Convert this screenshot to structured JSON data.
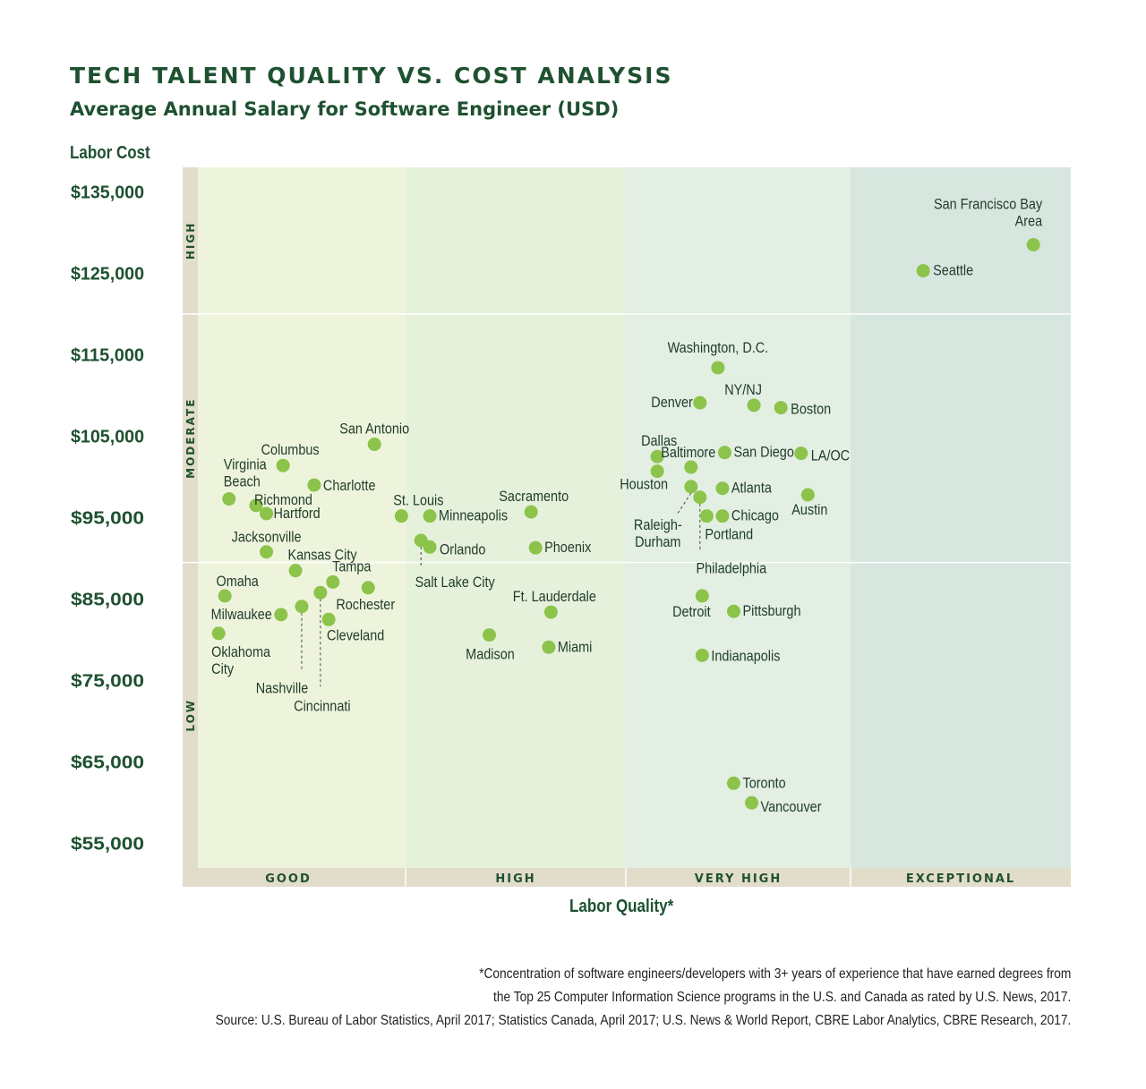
{
  "header": {
    "title": "TECH TALENT QUALITY VS. COST ANALYSIS",
    "subtitle": "Average Annual Salary for Software Engineer (USD)"
  },
  "footnote": {
    "line1": "*Concentration of software engineers/developers with 3+ years of experience that have earned degrees from",
    "line2": "the Top 25 Computer Information Science programs in the U.S. and Canada as rated by U.S. News, 2017.",
    "line3": "Source: U.S. Bureau of Labor Statistics, April 2017; Statistics Canada, April 2017; U.S. News & World Report, CBRE Labor Analytics, CBRE Research, 2017."
  },
  "colors": {
    "title": "#1e5130",
    "point": "#8cc34a",
    "band_good": "#eef4dc",
    "band_high": "#e6f1dc",
    "band_very_high": "#e2efe2",
    "band_exceptional": "#d8e6e0",
    "strip": "#e2dccb"
  },
  "chart_data": {
    "type": "scatter",
    "title": "TECH TALENT QUALITY VS. COST ANALYSIS",
    "subtitle": "Average Annual Salary for Software Engineer (USD)",
    "ylabel": "Labor Cost",
    "xlabel": "Labor Quality*",
    "ylim": [
      52000,
      138000
    ],
    "yticks": [
      "$135,000",
      "$125,000",
      "$115,000",
      "$105,000",
      "$95,000",
      "$85,000",
      "$75,000",
      "$65,000",
      "$55,000"
    ],
    "ytick_values": [
      135000,
      125000,
      115000,
      105000,
      95000,
      85000,
      75000,
      65000,
      55000
    ],
    "x_categories": [
      "GOOD",
      "HIGH",
      "VERY HIGH",
      "EXCEPTIONAL"
    ],
    "y_bands": [
      {
        "label": "HIGH",
        "from": 120000,
        "to": 138000
      },
      {
        "label": "MODERATE",
        "from": 89500,
        "to": 120000
      },
      {
        "label": "LOW",
        "from": 52000,
        "to": 89500
      }
    ],
    "points": [
      {
        "name": "San Francisco Bay Area",
        "label": [
          "San Francisco Bay",
          "Area"
        ],
        "x": 3.83,
        "y": 128500
      },
      {
        "name": "Seattle",
        "label": [
          "Seattle"
        ],
        "x": 3.33,
        "y": 125300
      },
      {
        "name": "Washington, D.C.",
        "label": [
          "Washington, D.C."
        ],
        "x": 2.41,
        "y": 113400
      },
      {
        "name": "Denver",
        "label": [
          "Denver"
        ],
        "x": 2.33,
        "y": 109100
      },
      {
        "name": "NY/NJ",
        "label": [
          "NY/NJ"
        ],
        "x": 2.57,
        "y": 108800
      },
      {
        "name": "Boston",
        "label": [
          "Boston"
        ],
        "x": 2.69,
        "y": 108500
      },
      {
        "name": "Dallas",
        "label": [
          "Dallas"
        ],
        "x": 2.14,
        "y": 102500
      },
      {
        "name": "Baltimore",
        "label": [
          "Baltimore"
        ],
        "x": 2.29,
        "y": 101200
      },
      {
        "name": "San Diego",
        "label": [
          "San Diego"
        ],
        "x": 2.44,
        "y": 103000
      },
      {
        "name": "LA/OC",
        "label": [
          "LA/OC"
        ],
        "x": 2.78,
        "y": 102900
      },
      {
        "name": "Houston",
        "label": [
          "Houston"
        ],
        "x": 2.14,
        "y": 100700
      },
      {
        "name": "Atlanta",
        "label": [
          "Atlanta"
        ],
        "x": 2.43,
        "y": 98600
      },
      {
        "name": "Austin",
        "label": [
          "Austin"
        ],
        "x": 2.81,
        "y": 97800
      },
      {
        "name": "Raleigh-Durham",
        "label": [
          "Raleigh-",
          "Durham"
        ],
        "x": 2.29,
        "y": 98800
      },
      {
        "name": "Philadelphia",
        "label": [
          "Philadelphia"
        ],
        "x": 2.33,
        "y": 97500
      },
      {
        "name": "Chicago",
        "label": [
          "Chicago"
        ],
        "x": 2.43,
        "y": 95200
      },
      {
        "name": "Portland",
        "label": [
          "Portland"
        ],
        "x": 2.36,
        "y": 95200
      },
      {
        "name": "Detroit",
        "label": [
          "Detroit"
        ],
        "x": 2.34,
        "y": 85400
      },
      {
        "name": "Pittsburgh",
        "label": [
          "Pittsburgh"
        ],
        "x": 2.48,
        "y": 83500
      },
      {
        "name": "Indianapolis",
        "label": [
          "Indianapolis"
        ],
        "x": 2.34,
        "y": 78100
      },
      {
        "name": "Toronto",
        "label": [
          "Toronto"
        ],
        "x": 2.48,
        "y": 62400
      },
      {
        "name": "Vancouver",
        "label": [
          "Vancouver"
        ],
        "x": 2.56,
        "y": 60000
      },
      {
        "name": "San Antonio",
        "label": [
          "San Antonio"
        ],
        "x": 0.85,
        "y": 104000
      },
      {
        "name": "Columbus",
        "label": [
          "Columbus"
        ],
        "x": 0.41,
        "y": 101400
      },
      {
        "name": "Charlotte",
        "label": [
          "Charlotte"
        ],
        "x": 0.56,
        "y": 99000
      },
      {
        "name": "Virginia Beach",
        "label": [
          "Virginia",
          "Beach"
        ],
        "x": 0.15,
        "y": 97300
      },
      {
        "name": "Richmond",
        "label": [
          "Richmond"
        ],
        "x": 0.28,
        "y": 96500
      },
      {
        "name": "Hartford",
        "label": [
          "Hartford"
        ],
        "x": 0.33,
        "y": 95500
      },
      {
        "name": "Jacksonville",
        "label": [
          "Jacksonville"
        ],
        "x": 0.33,
        "y": 90800
      },
      {
        "name": "Kansas City",
        "label": [
          "Kansas City"
        ],
        "x": 0.47,
        "y": 88500
      },
      {
        "name": "Tampa",
        "label": [
          "Tampa"
        ],
        "x": 0.65,
        "y": 87100
      },
      {
        "name": "Rochester",
        "label": [
          "Rochester"
        ],
        "x": 0.82,
        "y": 86400
      },
      {
        "name": "Omaha",
        "label": [
          "Omaha"
        ],
        "x": 0.13,
        "y": 85400
      },
      {
        "name": "Milwaukee",
        "label": [
          "Milwaukee"
        ],
        "x": 0.4,
        "y": 83100
      },
      {
        "name": "Nashville",
        "label": [
          "Nashville"
        ],
        "x": 0.5,
        "y": 84100
      },
      {
        "name": "Cincinnati",
        "label": [
          "Cincinnati"
        ],
        "x": 0.59,
        "y": 85800
      },
      {
        "name": "Cleveland",
        "label": [
          "Cleveland"
        ],
        "x": 0.63,
        "y": 82500
      },
      {
        "name": "Oklahoma City",
        "label": [
          "Oklahoma",
          "City"
        ],
        "x": 0.1,
        "y": 80800
      },
      {
        "name": "St. Louis",
        "label": [
          "St. Louis"
        ],
        "x": 0.98,
        "y": 95200
      },
      {
        "name": "Minneapolis",
        "label": [
          "Minneapolis"
        ],
        "x": 1.11,
        "y": 95200
      },
      {
        "name": "Salt Lake City",
        "label": [
          "Salt Lake City"
        ],
        "x": 1.07,
        "y": 92200
      },
      {
        "name": "Orlando",
        "label": [
          "Orlando"
        ],
        "x": 1.11,
        "y": 91400
      },
      {
        "name": "Sacramento",
        "label": [
          "Sacramento"
        ],
        "x": 1.57,
        "y": 95700
      },
      {
        "name": "Phoenix",
        "label": [
          "Phoenix"
        ],
        "x": 1.59,
        "y": 91300
      },
      {
        "name": "Ft. Lauderdale",
        "label": [
          "Ft. Lauderdale"
        ],
        "x": 1.66,
        "y": 83400
      },
      {
        "name": "Madison",
        "label": [
          "Madison"
        ],
        "x": 1.38,
        "y": 80600
      },
      {
        "name": "Miami",
        "label": [
          "Miami"
        ],
        "x": 1.65,
        "y": 79100
      }
    ]
  }
}
